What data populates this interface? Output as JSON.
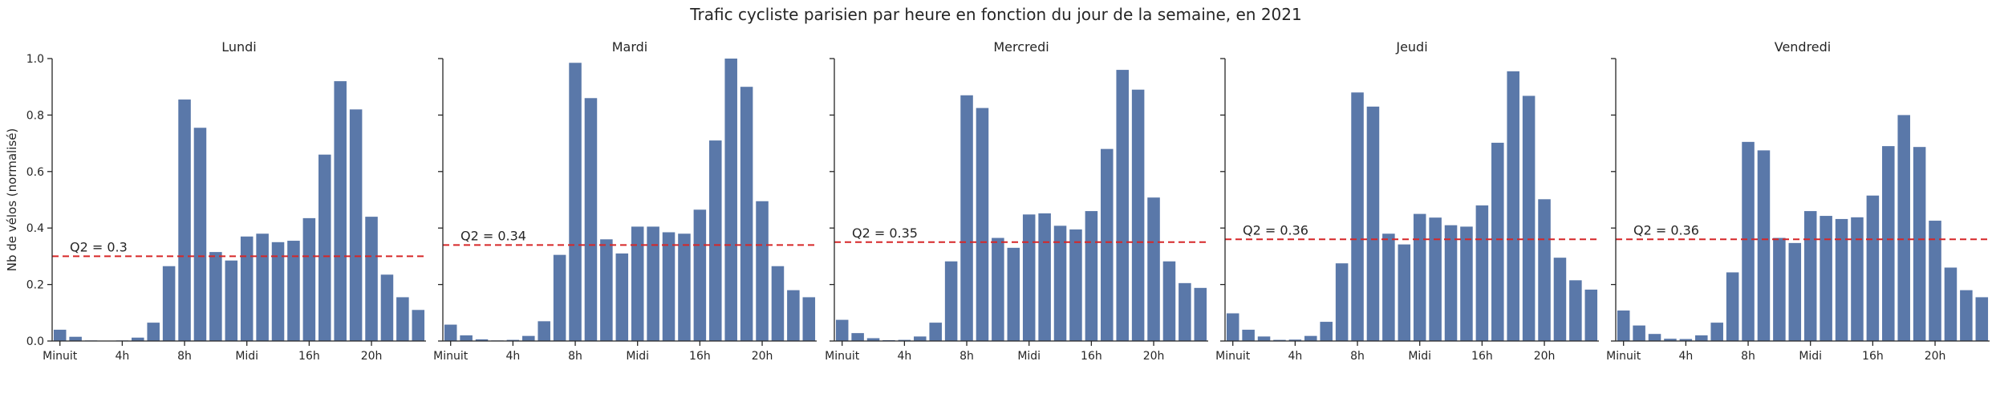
{
  "chart_data": {
    "type": "bar",
    "title": "Trafic cycliste parisien par heure en fonction du jour de la semaine, en 2021",
    "ylabel": "Nb de vélos (normalisé)",
    "ylim": [
      0,
      1.0
    ],
    "yticks": [
      "0.0",
      "0.2",
      "0.4",
      "0.6",
      "0.8",
      "1.0"
    ],
    "xtick_positions": [
      0,
      4,
      8,
      12,
      16,
      20
    ],
    "xtick_labels": [
      "Minuit",
      "4h",
      "8h",
      "Midi",
      "16h",
      "20h"
    ],
    "hours": [
      0,
      1,
      2,
      3,
      4,
      5,
      6,
      7,
      8,
      9,
      10,
      11,
      12,
      13,
      14,
      15,
      16,
      17,
      18,
      19,
      20,
      21,
      22,
      23
    ],
    "bar_color": "#5a78a9",
    "q2_color": "#d62728",
    "grid": false,
    "panels": [
      {
        "name": "Lundi",
        "values": [
          0.04,
          0.015,
          0.002,
          0.001,
          0.002,
          0.012,
          0.065,
          0.265,
          0.855,
          0.755,
          0.315,
          0.285,
          0.37,
          0.38,
          0.35,
          0.355,
          0.435,
          0.66,
          0.92,
          0.82,
          0.44,
          0.235,
          0.155,
          0.11
        ],
        "q2": 0.3,
        "q2_label": "Q2 = 0.3"
      },
      {
        "name": "Mardi",
        "values": [
          0.058,
          0.02,
          0.006,
          0.002,
          0.004,
          0.018,
          0.07,
          0.305,
          0.985,
          0.86,
          0.36,
          0.31,
          0.405,
          0.405,
          0.385,
          0.38,
          0.465,
          0.71,
          1.0,
          0.9,
          0.495,
          0.265,
          0.18,
          0.155
        ],
        "q2": 0.34,
        "q2_label": "Q2 = 0.34"
      },
      {
        "name": "Mercredi",
        "values": [
          0.075,
          0.028,
          0.01,
          0.003,
          0.004,
          0.016,
          0.065,
          0.282,
          0.87,
          0.825,
          0.365,
          0.33,
          0.448,
          0.452,
          0.408,
          0.395,
          0.46,
          0.68,
          0.96,
          0.89,
          0.508,
          0.282,
          0.205,
          0.188
        ],
        "q2": 0.35,
        "q2_label": "Q2 = 0.35"
      },
      {
        "name": "Jeudi",
        "values": [
          0.098,
          0.04,
          0.016,
          0.004,
          0.005,
          0.018,
          0.068,
          0.275,
          0.88,
          0.83,
          0.38,
          0.342,
          0.45,
          0.437,
          0.41,
          0.405,
          0.48,
          0.702,
          0.955,
          0.868,
          0.502,
          0.295,
          0.215,
          0.182
        ],
        "q2": 0.36,
        "q2_label": "Q2 = 0.36"
      },
      {
        "name": "Vendredi",
        "values": [
          0.108,
          0.055,
          0.025,
          0.008,
          0.007,
          0.02,
          0.065,
          0.243,
          0.705,
          0.675,
          0.365,
          0.347,
          0.46,
          0.443,
          0.432,
          0.438,
          0.515,
          0.69,
          0.8,
          0.687,
          0.426,
          0.26,
          0.18,
          0.155
        ],
        "q2": 0.36,
        "q2_label": "Q2 = 0.36"
      }
    ]
  }
}
